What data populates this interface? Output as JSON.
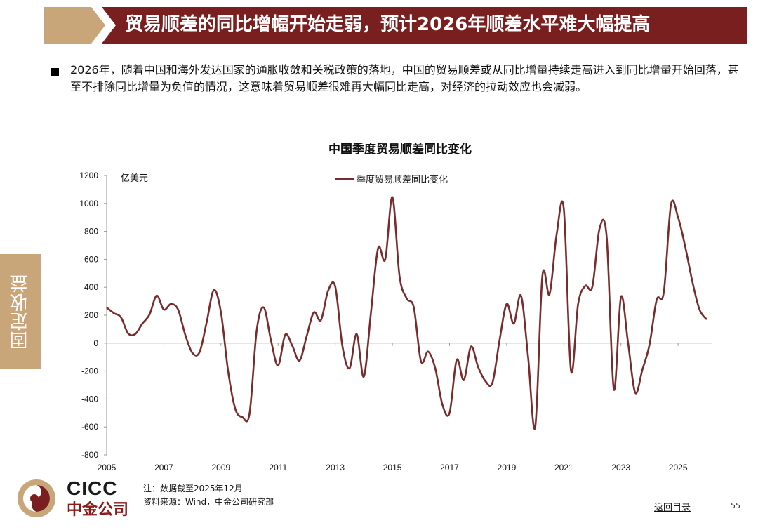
{
  "banner": {
    "title": "贸易顺差的同比增幅开始走弱，预计2026年顺差水平难大幅提高",
    "color_dark": "#7a1f1f",
    "color_gold": "#c9a57a"
  },
  "bullet_text": "2026年，随着中国和海外发达国家的通胀收敛和关税政策的落地，中国的贸易顺差或从同比增量持续走高进入到同比增量开始回落，甚至不排除同比增量为负值的情况，这意味着贸易顺差很难再大幅同比走高，对经济的拉动效应也会减弱。",
  "side_tab": {
    "label": "固定收益"
  },
  "chart_data": {
    "type": "line",
    "title": "中国季度贸易顺差同比变化",
    "unit_label": "亿美元",
    "xlabel": "",
    "ylabel": "",
    "ylim": [
      -800,
      1200
    ],
    "xlim": [
      2005,
      2026.2
    ],
    "yticks": [
      -800,
      -600,
      -400,
      -200,
      0,
      200,
      400,
      600,
      800,
      1000,
      1200
    ],
    "xticks": [
      2005,
      2007,
      2009,
      2011,
      2013,
      2015,
      2017,
      2019,
      2021,
      2023,
      2025
    ],
    "legend_position": "top-center",
    "series": [
      {
        "name": "季度贸易顺差同比变化",
        "color": "#7a2b2b",
        "points": [
          [
            2005.0,
            255
          ],
          [
            2005.25,
            215
          ],
          [
            2005.5,
            185
          ],
          [
            2005.75,
            70
          ],
          [
            2006.0,
            65
          ],
          [
            2006.25,
            140
          ],
          [
            2006.5,
            205
          ],
          [
            2006.75,
            340
          ],
          [
            2007.0,
            240
          ],
          [
            2007.25,
            280
          ],
          [
            2007.5,
            240
          ],
          [
            2007.75,
            60
          ],
          [
            2008.0,
            -70
          ],
          [
            2008.25,
            -65
          ],
          [
            2008.5,
            150
          ],
          [
            2008.75,
            380
          ],
          [
            2009.0,
            220
          ],
          [
            2009.25,
            -200
          ],
          [
            2009.5,
            -470
          ],
          [
            2009.75,
            -530
          ],
          [
            2010.0,
            -505
          ],
          [
            2010.25,
            90
          ],
          [
            2010.5,
            255
          ],
          [
            2010.75,
            20
          ],
          [
            2011.0,
            -160
          ],
          [
            2011.25,
            60
          ],
          [
            2011.5,
            -20
          ],
          [
            2011.75,
            -125
          ],
          [
            2012.0,
            50
          ],
          [
            2012.25,
            220
          ],
          [
            2012.5,
            165
          ],
          [
            2012.75,
            375
          ],
          [
            2013.0,
            405
          ],
          [
            2013.25,
            -20
          ],
          [
            2013.5,
            -180
          ],
          [
            2013.75,
            65
          ],
          [
            2014.0,
            -240
          ],
          [
            2014.25,
            220
          ],
          [
            2014.5,
            680
          ],
          [
            2014.75,
            600
          ],
          [
            2015.0,
            1045
          ],
          [
            2015.25,
            480
          ],
          [
            2015.5,
            320
          ],
          [
            2015.75,
            255
          ],
          [
            2016.0,
            -130
          ],
          [
            2016.25,
            -60
          ],
          [
            2016.5,
            -180
          ],
          [
            2016.75,
            -440
          ],
          [
            2017.0,
            -500
          ],
          [
            2017.25,
            -120
          ],
          [
            2017.5,
            -265
          ],
          [
            2017.75,
            -25
          ],
          [
            2018.0,
            -170
          ],
          [
            2018.25,
            -270
          ],
          [
            2018.5,
            -285
          ],
          [
            2018.75,
            20
          ],
          [
            2019.0,
            280
          ],
          [
            2019.25,
            140
          ],
          [
            2019.5,
            340
          ],
          [
            2019.75,
            -100
          ],
          [
            2020.0,
            -600
          ],
          [
            2020.25,
            480
          ],
          [
            2020.5,
            350
          ],
          [
            2020.75,
            780
          ],
          [
            2021.0,
            960
          ],
          [
            2021.25,
            -195
          ],
          [
            2021.5,
            280
          ],
          [
            2021.75,
            410
          ],
          [
            2022.0,
            405
          ],
          [
            2022.25,
            820
          ],
          [
            2022.5,
            760
          ],
          [
            2022.75,
            -330
          ],
          [
            2023.0,
            330
          ],
          [
            2023.25,
            0
          ],
          [
            2023.5,
            -355
          ],
          [
            2023.75,
            -190
          ],
          [
            2024.0,
            -10
          ],
          [
            2024.25,
            310
          ],
          [
            2024.5,
            365
          ],
          [
            2024.75,
            990
          ],
          [
            2025.0,
            900
          ],
          [
            2025.25,
            690
          ],
          [
            2025.5,
            440
          ],
          [
            2025.75,
            240
          ],
          [
            2026.0,
            170
          ]
        ]
      }
    ]
  },
  "notes": {
    "note": "注：数据截至2025年12月",
    "source": "资料来源：Wind，中金公司研究部"
  },
  "logo": {
    "name_en": "CICC",
    "name_cn": "中金公司"
  },
  "footer": {
    "back_link": "返回目录",
    "page_number": "55"
  }
}
